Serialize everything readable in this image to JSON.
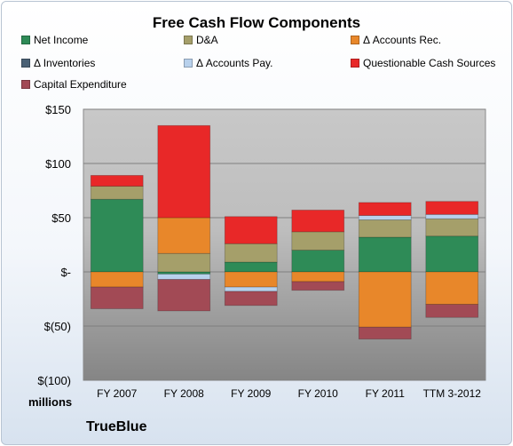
{
  "chart_data": {
    "type": "bar",
    "stacked": true,
    "title": "Free Cash Flow Components",
    "categories": [
      "FY 2007",
      "FY 2008",
      "FY 2009",
      "FY 2010",
      "FY 2011",
      "TTM 3-2012"
    ],
    "ylim": [
      -100,
      150
    ],
    "yticks": [
      150,
      100,
      50,
      0,
      -50,
      -100
    ],
    "ytick_labels": [
      "$150",
      "$100",
      "$50",
      "$-",
      "$(50)",
      "$(100)"
    ],
    "yunit": "millions",
    "grid": true,
    "legend": "top",
    "series": [
      {
        "name": "Net Income",
        "color": "#2e8b57",
        "values": [
          67,
          -2,
          9,
          20,
          32,
          33
        ]
      },
      {
        "name": "D&A",
        "color": "#a59f6a",
        "values": [
          12,
          17,
          17,
          17,
          16,
          16
        ]
      },
      {
        "name": "Δ Accounts Rec.",
        "color": "#e8872a",
        "values": [
          -14,
          33,
          -14,
          -9,
          -51,
          -30
        ]
      },
      {
        "name": "Δ Inventories",
        "color": "#4a6175",
        "values": [
          0,
          0,
          0,
          0,
          0,
          0
        ]
      },
      {
        "name": "Δ Accounts Pay.",
        "color": "#b8d1ec",
        "values": [
          0,
          -5,
          -4,
          0,
          4,
          4
        ]
      },
      {
        "name": "Questionable Cash Sources",
        "color": "#e82828",
        "values": [
          10,
          85,
          25,
          20,
          12,
          12
        ]
      },
      {
        "name": "Capital Expenditure",
        "color": "#a24a55",
        "values": [
          -20,
          -29,
          -13,
          -8,
          -11,
          -12
        ]
      }
    ]
  },
  "footer": "TrueBlue"
}
